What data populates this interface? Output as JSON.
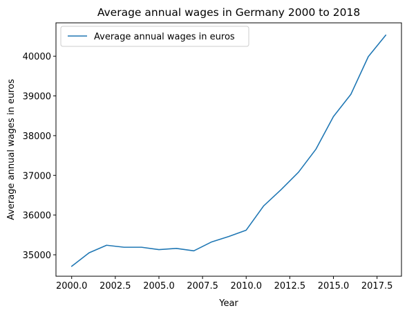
{
  "chart_data": {
    "type": "line",
    "title": "Average annual wages in Germany 2000 to 2018",
    "xlabel": "Year",
    "ylabel": "Average annual wages in euros",
    "xlim": [
      1999.1,
      2018.9
    ],
    "ylim": [
      34460,
      40840
    ],
    "xticks": [
      2000.0,
      2002.5,
      2005.0,
      2007.5,
      2010.0,
      2012.5,
      2015.0,
      2017.5
    ],
    "xtick_labels": [
      "2000.0",
      "2002.5",
      "2005.0",
      "2007.5",
      "2010.0",
      "2012.5",
      "2015.0",
      "2017.5"
    ],
    "yticks": [
      35000,
      36000,
      37000,
      38000,
      39000,
      40000
    ],
    "ytick_labels": [
      "35000",
      "36000",
      "37000",
      "38000",
      "39000",
      "40000"
    ],
    "grid": false,
    "legend_position": "upper-left",
    "series": [
      {
        "name": "Average annual wages in euros",
        "color": "#1f77b4",
        "x": [
          2000,
          2001,
          2002,
          2003,
          2004,
          2005,
          2006,
          2007,
          2008,
          2009,
          2010,
          2011,
          2012,
          2013,
          2014,
          2015,
          2016,
          2017,
          2018
        ],
        "y": [
          34710,
          35050,
          35240,
          35190,
          35190,
          35130,
          35160,
          35100,
          35320,
          35460,
          35620,
          36230,
          36640,
          37080,
          37660,
          38480,
          39040,
          39990,
          40530
        ]
      }
    ]
  }
}
